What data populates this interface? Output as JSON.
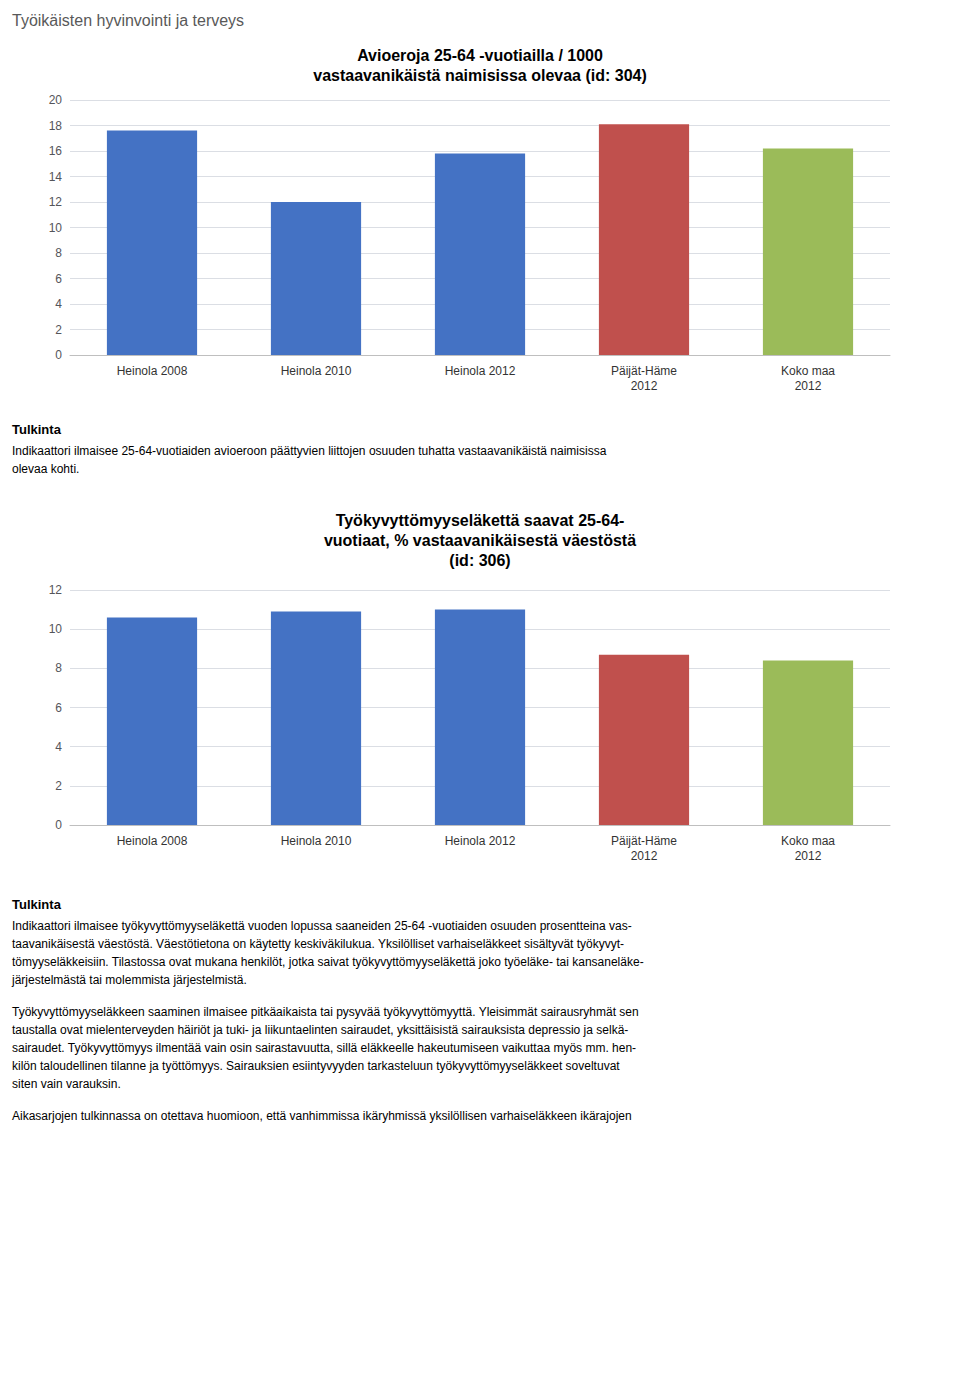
{
  "title": "Työikäisten hyvinvointi ja terveys",
  "chart_data": [
    {
      "type": "bar",
      "title": "Avioeroja 25-64 -vuotiailla / 1000\nvastaavanikäistä naimisissa olevaa (id: 304)",
      "categories": [
        "Heinola 2008",
        "Heinola 2010",
        "Heinola 2012",
        "Päijät-Häme\n2012",
        "Koko maa\n2012"
      ],
      "values": [
        17.6,
        12.0,
        15.8,
        18.1,
        16.2
      ],
      "colors": [
        "#4472C4",
        "#4472C4",
        "#4472C4",
        "#C0504D",
        "#9BBB59"
      ],
      "ylim": [
        0,
        20
      ],
      "yticks": [
        0,
        2,
        4,
        6,
        8,
        10,
        12,
        14,
        16,
        18,
        20
      ],
      "grid": true,
      "annotations": [
        "Tulkinta",
        "Indikaattori ilmaisee 25-64-vuotiaiden avioeroon päättyvien liittojen osuuden tuhatta vastaavanikäistä naimisissa\nolevaa kohti."
      ]
    },
    {
      "type": "bar",
      "title": "Työkyvyttömyyseläkettä saavat 25-64-\nvuotiaat, % vastaavanikäisestä väestöstä\n(id: 306)",
      "categories": [
        "Heinola 2008",
        "Heinola 2010",
        "Heinola 2012",
        "Päijät-Häme\n2012",
        "Koko maa\n2012"
      ],
      "values": [
        10.6,
        10.9,
        11.0,
        8.7,
        8.4
      ],
      "colors": [
        "#4472C4",
        "#4472C4",
        "#4472C4",
        "#C0504D",
        "#9BBB59"
      ],
      "ylim": [
        0,
        12
      ],
      "yticks": [
        0,
        2,
        4,
        6,
        8,
        10,
        12
      ],
      "grid": true,
      "annotations": [
        "Tulkinta",
        "Indikaattori ilmaisee työkyvyttömyyseläkettä vuoden lopussa saaneiden 25-64 -vuotiaiden osuuden prosentteina vas-\ntaavanikäisestä väestöstä. Väestötietona on käytetty keskiväkilukua. Yksilölliset varhaiseläkkeet sisältyvät työkyvyt-\ntömyyseläkkeisiin. Tilastossa ovat mukana henkilöt, jotka saivat työkyvyttömyyseläkettä joko työeläke- tai kansaneläke-\njärjestelmästä tai molemmista järjestelmistä.",
        "Työkyvyttömyyseläkkeen saaminen ilmaisee pitkäaikaista tai pysyvää työkyvyttömyyttä. Yleisimmät sairausryhmät sen\ntaustalla ovat mielenterveyden häiriöt ja tuki- ja liikuntaelinten sairaudet, yksittäisistä sairauksista depressio ja selkä-\nsairaudet. Työkyvyttömyys ilmentää vain osin sairastavuutta, sillä eläkkeelle hakeutumiseen vaikuttaa myös mm. hen-\nkilön taloudellinen tilanne ja työttömyys. Sairauksien esiintyvyyden tarkasteluun työkyvyttömyyseläkkeet soveltuvat\nsiten vain varauksin.",
        "Aikasarjojen tulkinnassa on otettava huomioon, että vanhimmissa ikäryhmissä yksilöllisen varhaiseläkkeen ikärajojen"
      ]
    }
  ]
}
